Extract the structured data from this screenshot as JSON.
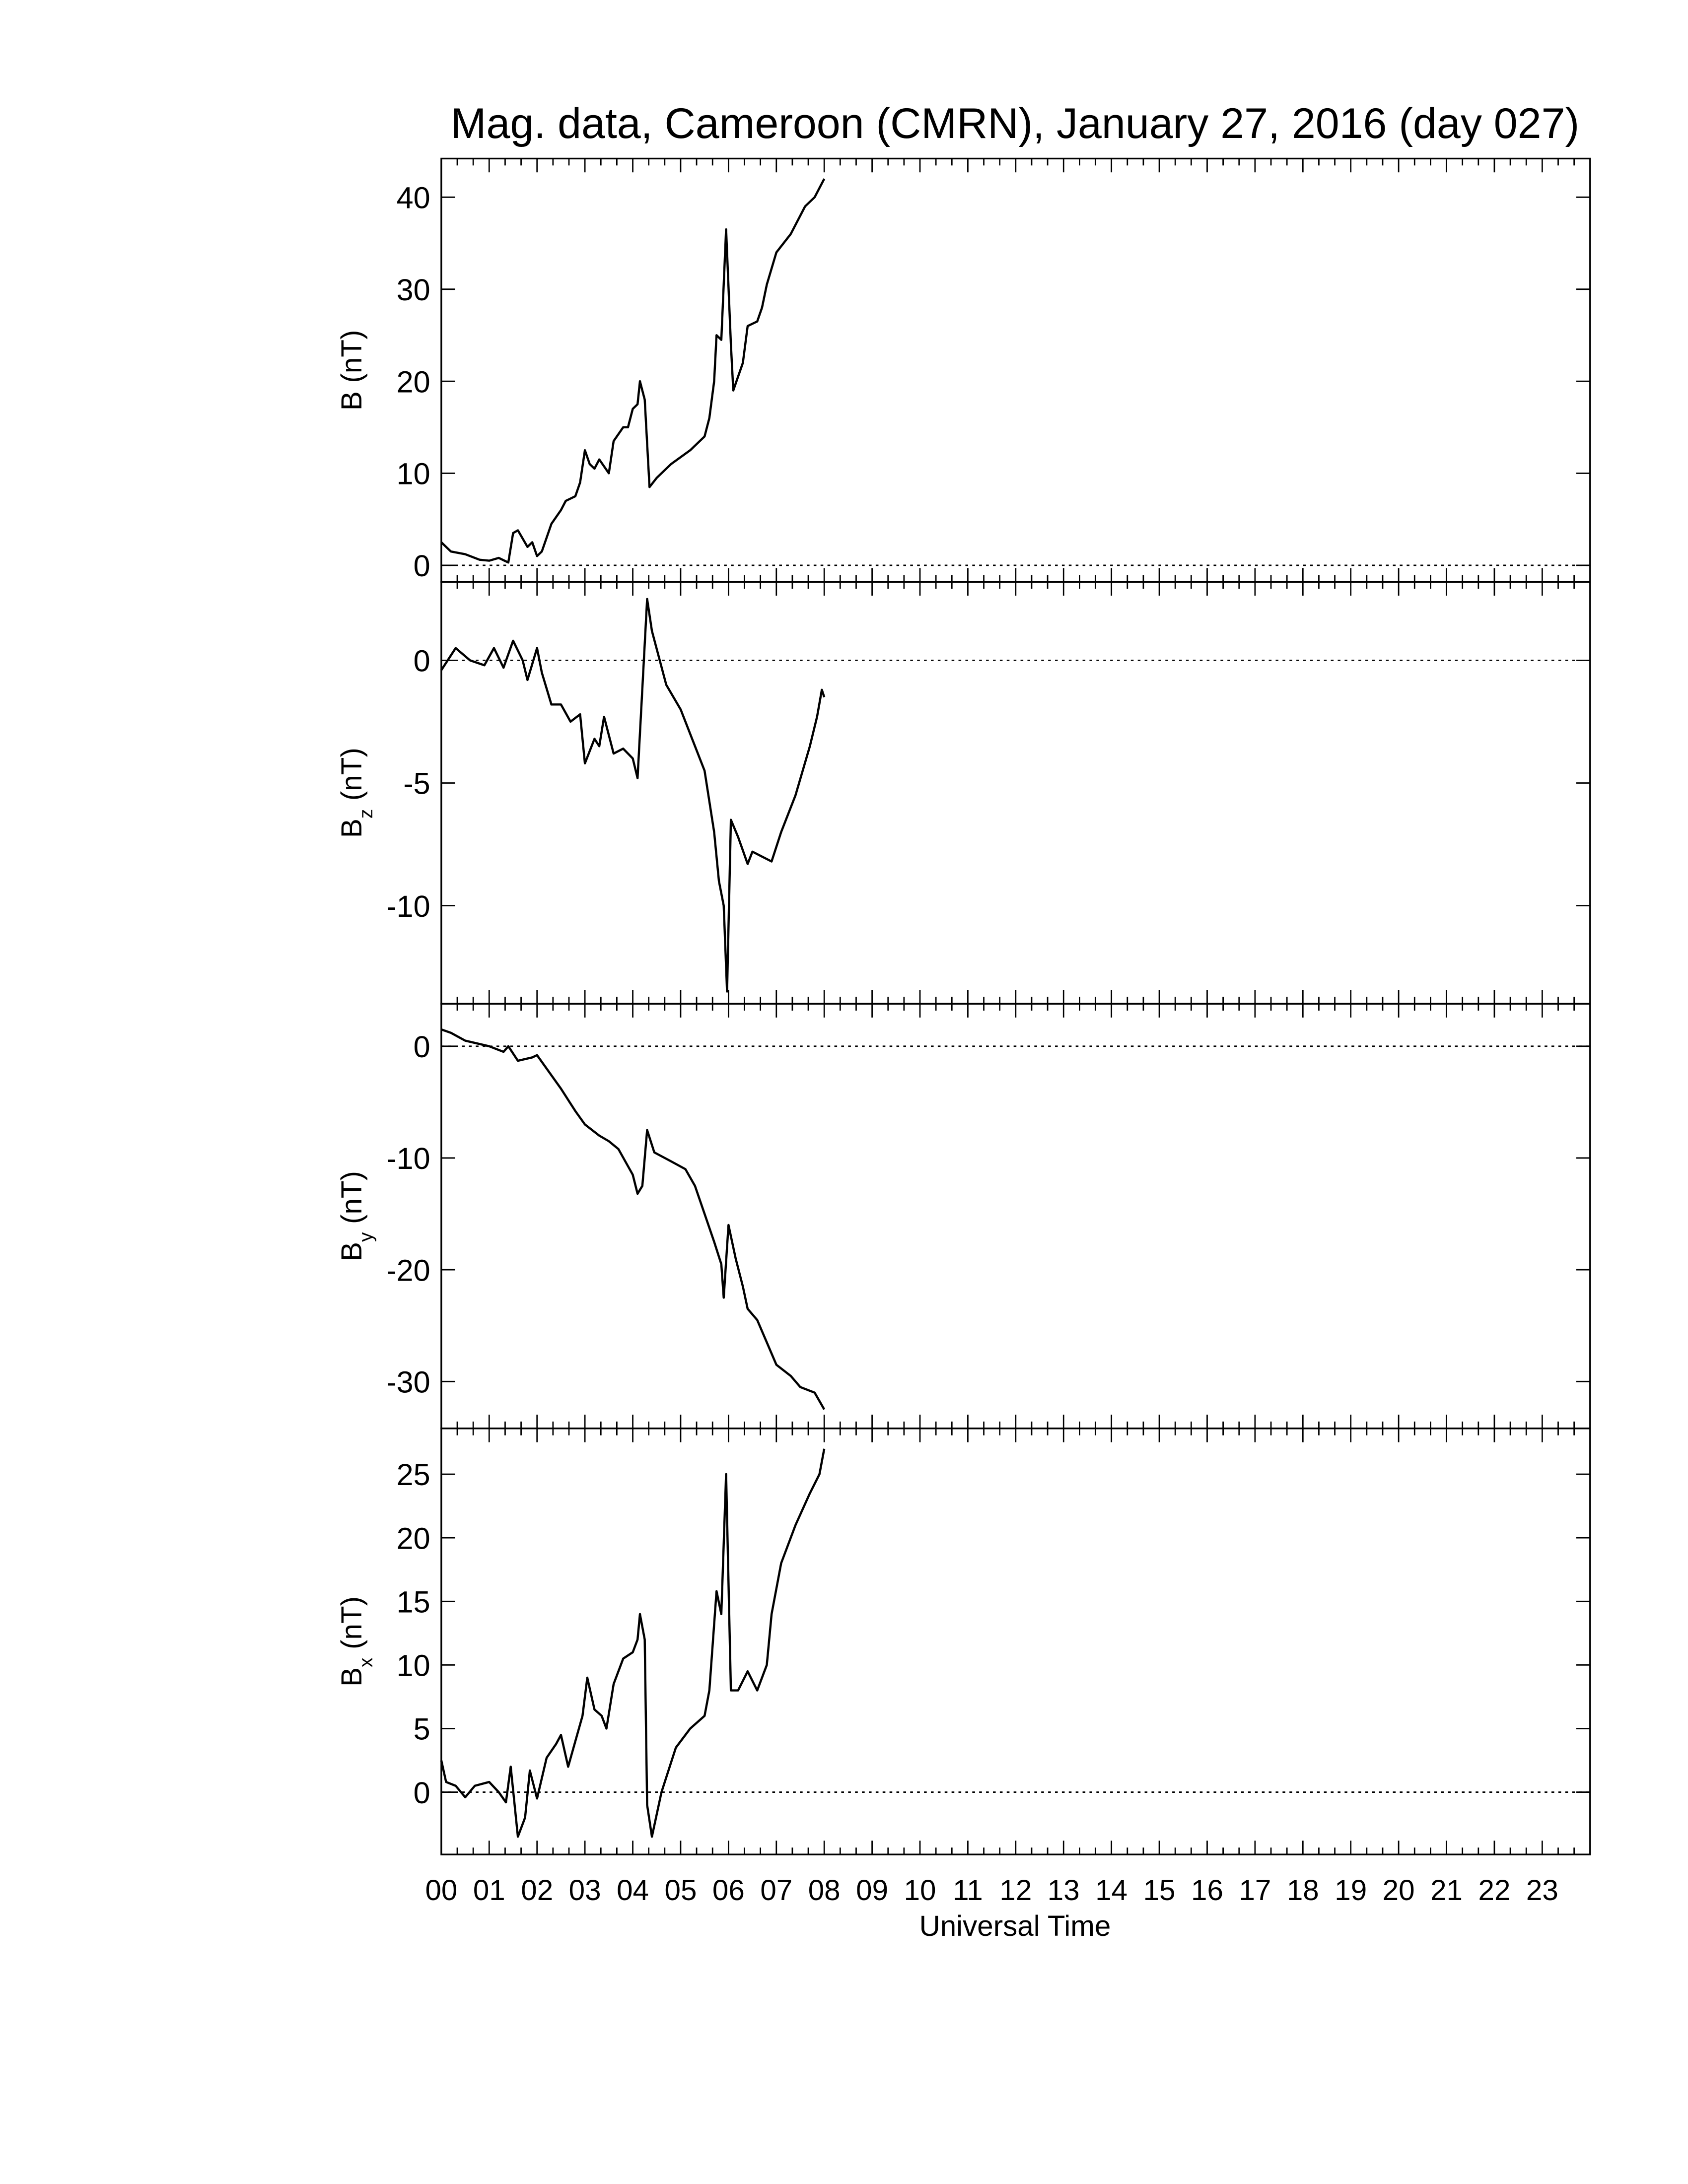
{
  "chart_data": [
    {
      "type": "line",
      "title": "Mag. data, Cameroon (CMRN), January 27, 2016 (day 027)",
      "ylabel": [
        "B",
        "",
        "(nT)"
      ],
      "color": "#000000",
      "zero_line": true,
      "xlim": [
        0,
        24
      ],
      "ylim": [
        -1.8,
        44.2
      ],
      "yticks": [
        0,
        10,
        20,
        30,
        40
      ],
      "x": [
        0,
        0.2,
        0.5,
        0.8,
        1.0,
        1.2,
        1.4,
        1.5,
        1.6,
        1.8,
        1.9,
        2.0,
        2.1,
        2.3,
        2.5,
        2.6,
        2.8,
        2.9,
        3.0,
        3.1,
        3.2,
        3.3,
        3.5,
        3.6,
        3.8,
        3.9,
        4.0,
        4.1,
        4.15,
        4.25,
        4.35,
        4.5,
        4.8,
        5.2,
        5.5,
        5.6,
        5.7,
        5.75,
        5.85,
        5.95,
        6.05,
        6.1,
        6.3,
        6.4,
        6.6,
        6.7,
        6.8,
        7.0,
        7.3,
        7.6,
        7.8,
        8.0
      ],
      "values": [
        2.5,
        1.5,
        1.2,
        0.6,
        0.5,
        0.8,
        0.3,
        3.5,
        3.8,
        2,
        2.5,
        1,
        1.5,
        4.5,
        6,
        7,
        7.5,
        9,
        12.5,
        11,
        10.5,
        11.5,
        10,
        13.5,
        15,
        15,
        17,
        17.5,
        20,
        18,
        8.5,
        9.5,
        11,
        12.5,
        14,
        16,
        20,
        25,
        24.5,
        36.5,
        24,
        19,
        22,
        26,
        26.5,
        28,
        30.5,
        34,
        36,
        39,
        40,
        42
      ]
    },
    {
      "type": "line",
      "ylabel": [
        "B",
        "z",
        "(nT)"
      ],
      "color": "#000000",
      "zero_line": true,
      "xlim": [
        0,
        24
      ],
      "ylim": [
        -14,
        3.2
      ],
      "yticks": [
        0,
        -5,
        -10
      ],
      "x": [
        0,
        0.3,
        0.6,
        0.9,
        1.1,
        1.3,
        1.5,
        1.7,
        1.8,
        2.0,
        2.1,
        2.3,
        2.5,
        2.7,
        2.9,
        3.0,
        3.2,
        3.3,
        3.4,
        3.6,
        3.8,
        4.0,
        4.1,
        4.3,
        4.4,
        4.7,
        5.0,
        5.3,
        5.5,
        5.7,
        5.8,
        5.9,
        5.97,
        6.05,
        6.2,
        6.4,
        6.5,
        6.7,
        6.9,
        7.1,
        7.4,
        7.7,
        7.85,
        7.95,
        8.0
      ],
      "values": [
        -0.4,
        0.5,
        0,
        -0.2,
        0.5,
        -0.3,
        0.8,
        0,
        -0.8,
        0.5,
        -0.5,
        -1.8,
        -1.8,
        -2.5,
        -2.2,
        -4.2,
        -3.2,
        -3.5,
        -2.3,
        -3.8,
        -3.6,
        -4,
        -4.8,
        2.5,
        1.2,
        -1,
        -2,
        -3.5,
        -4.5,
        -7,
        -9,
        -10,
        -13.5,
        -6.5,
        -7.2,
        -8.3,
        -7.8,
        -8,
        -8.2,
        -7,
        -5.5,
        -3.5,
        -2.3,
        -1.2,
        -1.5
      ]
    },
    {
      "type": "line",
      "ylabel": [
        "B",
        "y",
        "(nT)"
      ],
      "color": "#000000",
      "zero_line": true,
      "xlim": [
        0,
        24
      ],
      "ylim": [
        -34.2,
        3.8
      ],
      "yticks": [
        0,
        -10,
        -20,
        -30
      ],
      "x": [
        0,
        0.2,
        0.5,
        1.0,
        1.3,
        1.4,
        1.6,
        1.9,
        2.0,
        2.2,
        2.5,
        2.8,
        3.0,
        3.3,
        3.5,
        3.7,
        4.0,
        4.1,
        4.2,
        4.3,
        4.45,
        4.8,
        5.1,
        5.3,
        5.5,
        5.7,
        5.85,
        5.9,
        6.0,
        6.15,
        6.3,
        6.4,
        6.6,
        6.8,
        7.0,
        7.3,
        7.5,
        7.8,
        8.0
      ],
      "values": [
        1.5,
        1.2,
        0.5,
        0,
        -0.5,
        0,
        -1.3,
        -1,
        -0.8,
        -2,
        -3.8,
        -5.8,
        -7,
        -8,
        -8.5,
        -9.2,
        -11.5,
        -13.2,
        -12.5,
        -7.5,
        -9.5,
        -10.3,
        -11,
        -12.5,
        -15,
        -17.5,
        -19.5,
        -22.5,
        -16,
        -19,
        -21.5,
        -23.5,
        -24.5,
        -26.5,
        -28.5,
        -29.5,
        -30.5,
        -31,
        -32.5
      ]
    },
    {
      "type": "line",
      "ylabel": [
        "B",
        "x",
        "(nT)"
      ],
      "color": "#000000",
      "zero_line": true,
      "xlabel": "Universal Time",
      "xlim": [
        0,
        24
      ],
      "ylim": [
        -4.9,
        28.6
      ],
      "yticks": [
        0,
        5,
        10,
        15,
        20,
        25
      ],
      "xticks": [
        {
          "value": 0,
          "label": "00"
        },
        {
          "value": 1,
          "label": "01"
        },
        {
          "value": 2,
          "label": "02"
        },
        {
          "value": 3,
          "label": "03"
        },
        {
          "value": 4,
          "label": "04"
        },
        {
          "value": 5,
          "label": "05"
        },
        {
          "value": 6,
          "label": "06"
        },
        {
          "value": 7,
          "label": "07"
        },
        {
          "value": 8,
          "label": "08"
        },
        {
          "value": 9,
          "label": "09"
        },
        {
          "value": 10,
          "label": "10"
        },
        {
          "value": 11,
          "label": "11"
        },
        {
          "value": 12,
          "label": "12"
        },
        {
          "value": 13,
          "label": "13"
        },
        {
          "value": 14,
          "label": "14"
        },
        {
          "value": 15,
          "label": "15"
        },
        {
          "value": 16,
          "label": "16"
        },
        {
          "value": 17,
          "label": "17"
        },
        {
          "value": 18,
          "label": "18"
        },
        {
          "value": 19,
          "label": "19"
        },
        {
          "value": 20,
          "label": "20"
        },
        {
          "value": 21,
          "label": "21"
        },
        {
          "value": 22,
          "label": "22"
        },
        {
          "value": 23,
          "label": "23"
        }
      ],
      "x": [
        0,
        0.1,
        0.3,
        0.5,
        0.7,
        1.0,
        1.2,
        1.35,
        1.45,
        1.6,
        1.75,
        1.85,
        2.0,
        2.2,
        2.4,
        2.5,
        2.65,
        2.8,
        2.95,
        3.05,
        3.2,
        3.35,
        3.45,
        3.6,
        3.8,
        4.0,
        4.1,
        4.15,
        4.25,
        4.3,
        4.4,
        4.6,
        4.9,
        5.2,
        5.5,
        5.6,
        5.75,
        5.85,
        5.95,
        6.05,
        6.2,
        6.4,
        6.6,
        6.8,
        6.9,
        7.1,
        7.4,
        7.7,
        7.9,
        8.0
      ],
      "values": [
        2.5,
        0.8,
        0.5,
        -0.4,
        0.5,
        0.8,
        0,
        -0.8,
        2,
        -3.5,
        -2,
        1.7,
        -0.5,
        2.7,
        3.8,
        4.5,
        2,
        4,
        6,
        9,
        6.5,
        6,
        5,
        8.5,
        10.5,
        11,
        12,
        14,
        12,
        -1,
        -3.5,
        0,
        3.5,
        5,
        6,
        8,
        15.8,
        14,
        25,
        8,
        8,
        9.5,
        8,
        10,
        14,
        18,
        21,
        23.5,
        25,
        27
      ]
    }
  ]
}
